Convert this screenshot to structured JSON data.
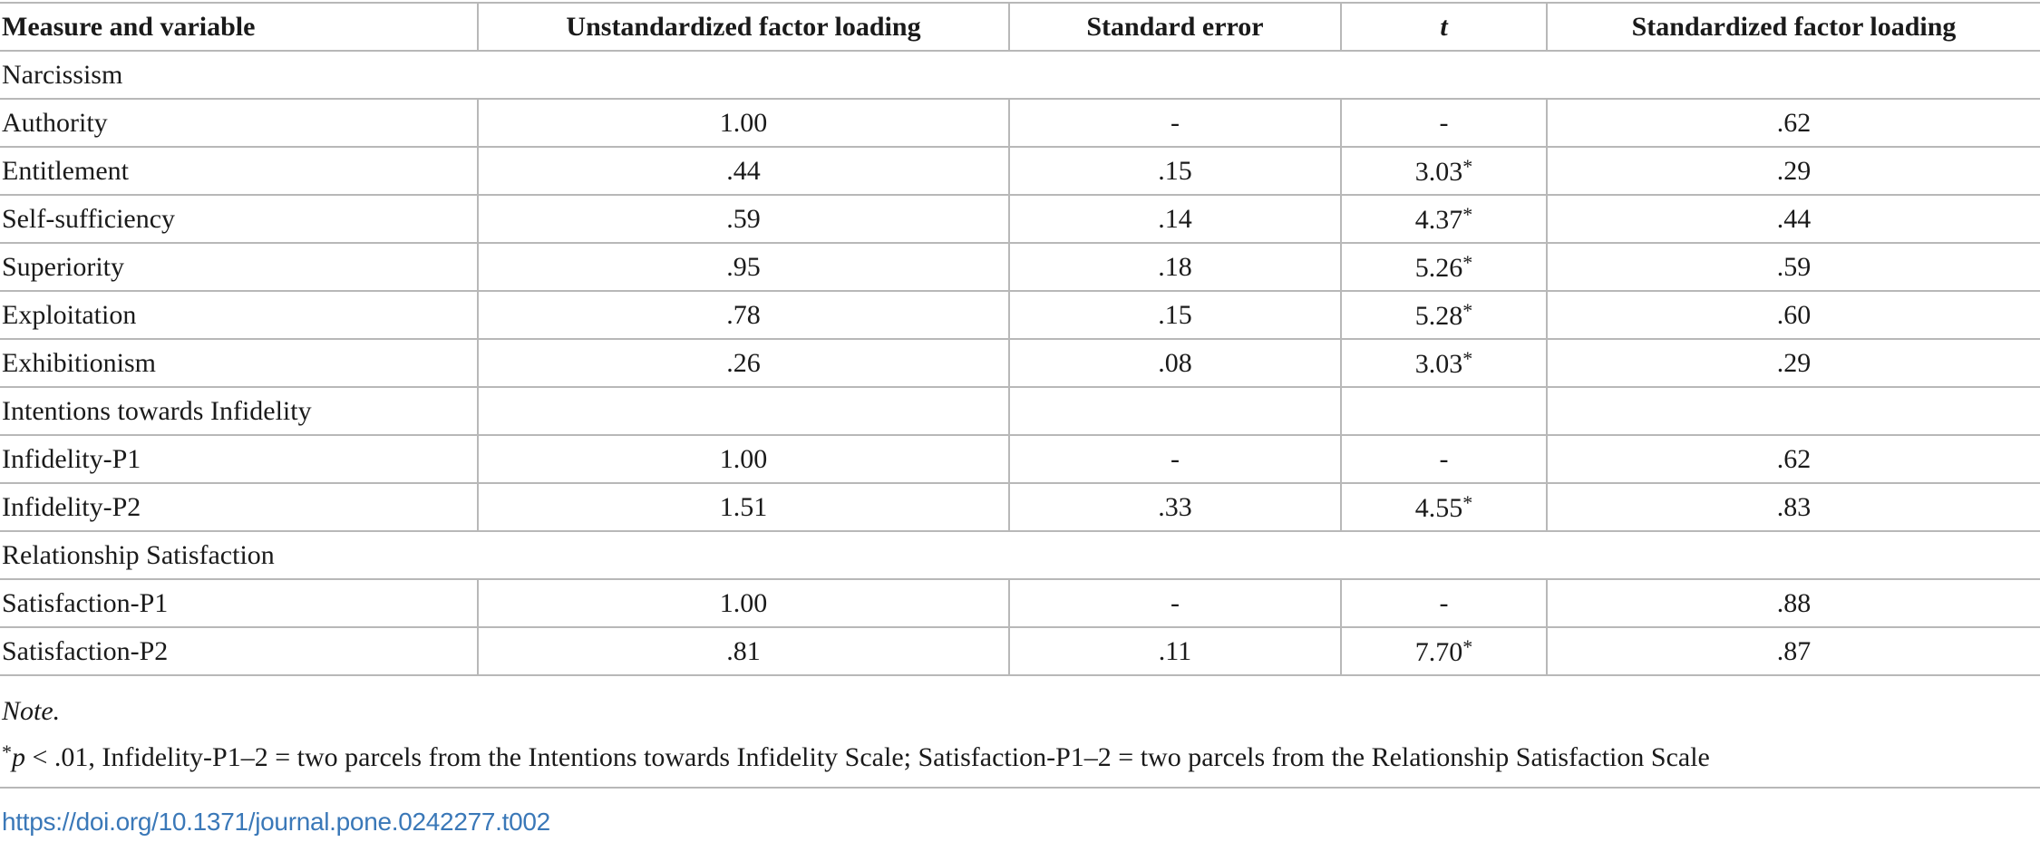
{
  "table": {
    "headers": [
      "Measure and variable",
      "Unstandardized factor loading",
      "Standard error",
      "t",
      "Standardized factor loading"
    ],
    "rows": [
      {
        "type": "section",
        "label": "Narcissism"
      },
      {
        "type": "data",
        "label": "Authority",
        "unstd": "1.00",
        "se": "-",
        "t": "-",
        "t_star": "",
        "std": ".62"
      },
      {
        "type": "data",
        "label": "Entitlement",
        "unstd": ".44",
        "se": ".15",
        "t": "3.03",
        "t_star": "*",
        "std": ".29"
      },
      {
        "type": "data",
        "label": "Self-sufficiency",
        "unstd": ".59",
        "se": ".14",
        "t": "4.37",
        "t_star": "*",
        "std": ".44"
      },
      {
        "type": "data",
        "label": "Superiority",
        "unstd": ".95",
        "se": ".18",
        "t": "5.26",
        "t_star": "*",
        "std": ".59"
      },
      {
        "type": "data",
        "label": "Exploitation",
        "unstd": ".78",
        "se": ".15",
        "t": "5.28",
        "t_star": "*",
        "std": ".60"
      },
      {
        "type": "data",
        "label": "Exhibitionism",
        "unstd": ".26",
        "se": ".08",
        "t": "3.03",
        "t_star": "*",
        "std": ".29"
      },
      {
        "type": "section-grid",
        "label": "Intentions towards Infidelity"
      },
      {
        "type": "data",
        "label": "Infidelity-P1",
        "unstd": "1.00",
        "se": "-",
        "t": "-",
        "t_star": "",
        "std": ".62"
      },
      {
        "type": "data",
        "label": "Infidelity-P2",
        "unstd": "1.51",
        "se": ".33",
        "t": "4.55",
        "t_star": "*",
        "std": ".83"
      },
      {
        "type": "section",
        "label": "Relationship Satisfaction"
      },
      {
        "type": "data",
        "label": "Satisfaction-P1",
        "unstd": "1.00",
        "se": "-",
        "t": "-",
        "t_star": "",
        "std": ".88"
      },
      {
        "type": "data",
        "label": "Satisfaction-P2",
        "unstd": ".81",
        "se": ".11",
        "t": "7.70",
        "t_star": "*",
        "std": ".87"
      }
    ]
  },
  "note": {
    "title": "Note.",
    "star": "*",
    "p_symbol": "p",
    "text": " < .01, Infidelity-P1–2 = two parcels from the Intentions towards Infidelity Scale; Satisfaction-P1–2 = two parcels from the Relationship Satisfaction Scale"
  },
  "doi": "https://doi.org/10.1371/journal.pone.0242277.t002"
}
